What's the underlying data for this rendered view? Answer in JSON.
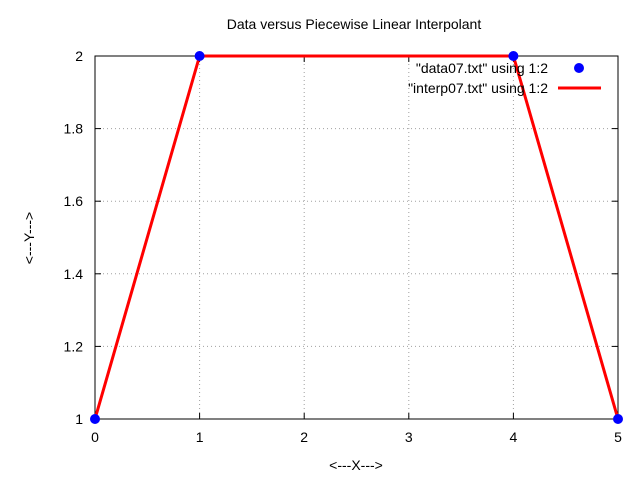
{
  "chart_data": {
    "type": "line",
    "title": "Data versus Piecewise Linear Interpolant",
    "xlabel": "<---X--->",
    "ylabel": "<---Y--->",
    "xlim": [
      0,
      5
    ],
    "ylim": [
      1,
      2
    ],
    "x_ticks": [
      "0",
      "1",
      "2",
      "3",
      "4",
      "5"
    ],
    "y_ticks": [
      "1",
      "1.2",
      "1.4",
      "1.6",
      "1.8",
      "2"
    ],
    "grid": true,
    "legend_position": "top-right",
    "series": [
      {
        "name": "\"data07.txt\" using 1:2",
        "style": "points",
        "color": "#0000ff",
        "x": [
          0,
          1,
          4,
          5
        ],
        "y": [
          1,
          2,
          2,
          1
        ]
      },
      {
        "name": "\"interp07.txt\" using 1:2",
        "style": "line",
        "color": "#ff0000",
        "x": [
          0,
          1,
          4,
          5
        ],
        "y": [
          1,
          2,
          2,
          1
        ]
      }
    ]
  }
}
